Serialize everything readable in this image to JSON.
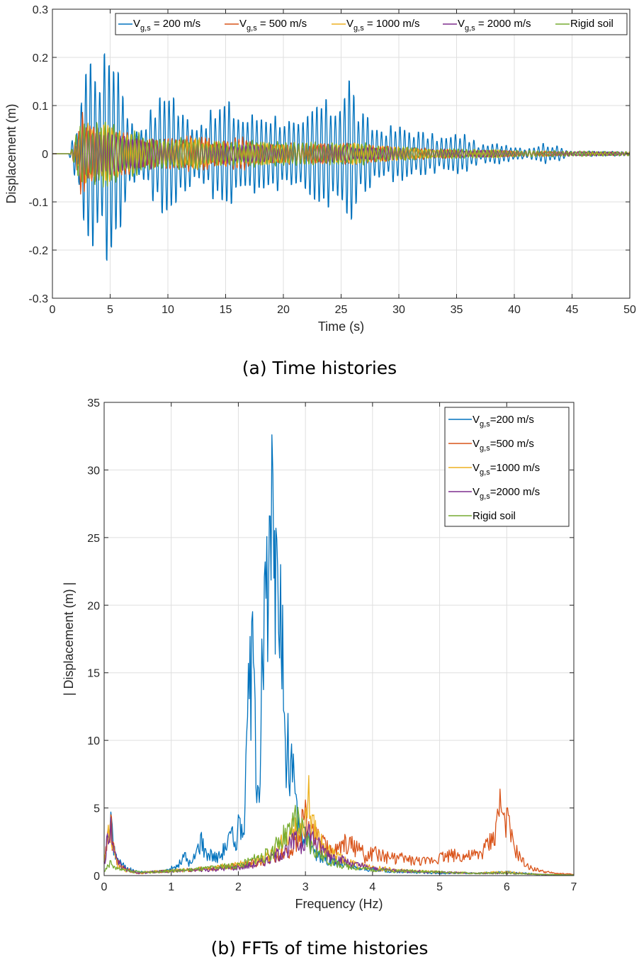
{
  "colors": {
    "s200": "#0072BD",
    "s500": "#D95319",
    "s1000": "#EDB120",
    "s2000": "#7E2F8E",
    "rigid": "#77AC30",
    "grid": "#dfdfdf",
    "axis": "#262626"
  },
  "chart_data": [
    {
      "type": "line",
      "xlabel": "Time (s)",
      "ylabel": "Displacement (m)",
      "caption": "(a) Time histories",
      "xlim": [
        0,
        50
      ],
      "ylim": [
        -0.3,
        0.3
      ],
      "xticks": [
        0,
        5,
        10,
        15,
        20,
        25,
        30,
        35,
        40,
        45,
        50
      ],
      "yticks": [
        -0.3,
        -0.2,
        -0.1,
        0,
        0.1,
        0.2,
        0.3
      ],
      "grid": true,
      "legend_placement": "top, horizontal",
      "series": [
        {
          "name": "V_g,s = 200 m/s",
          "key": "s200",
          "envelope": [
            [
              0,
              0
            ],
            [
              1.4,
              0
            ],
            [
              2.2,
              0.06
            ],
            [
              2.8,
              0.17
            ],
            [
              3.5,
              0.19
            ],
            [
              4.2,
              0.16
            ],
            [
              5.2,
              0.22
            ],
            [
              6,
              0.15
            ],
            [
              6.8,
              0.06
            ],
            [
              7.5,
              0.05
            ],
            [
              8.5,
              0.08
            ],
            [
              9.5,
              0.11
            ],
            [
              10.2,
              0.14
            ],
            [
              11,
              0.08
            ],
            [
              12.5,
              0.06
            ],
            [
              14,
              0.08
            ],
            [
              15,
              0.1
            ],
            [
              16.5,
              0.07
            ],
            [
              18.5,
              0.08
            ],
            [
              20,
              0.07
            ],
            [
              21.5,
              0.05
            ],
            [
              23,
              0.1
            ],
            [
              24.5,
              0.09
            ],
            [
              25.7,
              0.15
            ],
            [
              26.5,
              0.08
            ],
            [
              28,
              0.05
            ],
            [
              30.5,
              0.05
            ],
            [
              32,
              0.04
            ],
            [
              34,
              0.03
            ],
            [
              35.5,
              0.04
            ],
            [
              37,
              0.015
            ],
            [
              39,
              0.02
            ],
            [
              41,
              0.01
            ],
            [
              42.5,
              0.02
            ],
            [
              43.5,
              0.015
            ],
            [
              45,
              0.005
            ],
            [
              50,
              0.004
            ]
          ],
          "freq_hz": 2.5,
          "phase": 0.0
        },
        {
          "name": "V_g,s = 500 m/s",
          "key": "s500",
          "envelope": [
            [
              0,
              0
            ],
            [
              1.5,
              0
            ],
            [
              2,
              0.03
            ],
            [
              2.5,
              0.08
            ],
            [
              3,
              0.06
            ],
            [
              4.5,
              0.05
            ],
            [
              6,
              0.04
            ],
            [
              8,
              0.03
            ],
            [
              10,
              0.03
            ],
            [
              13,
              0.03
            ],
            [
              15,
              0.025
            ],
            [
              16.5,
              0.03
            ],
            [
              18,
              0.02
            ],
            [
              21,
              0.02
            ],
            [
              23,
              0.02
            ],
            [
              26,
              0.02
            ],
            [
              28,
              0.015
            ],
            [
              32,
              0.01
            ],
            [
              35,
              0.008
            ],
            [
              40,
              0.005
            ],
            [
              45,
              0.004
            ],
            [
              50,
              0.003
            ]
          ],
          "freq_hz": 3.1,
          "phase": 1.1
        },
        {
          "name": "V_g,s = 1000 m/s",
          "key": "s1000",
          "envelope": [
            [
              0,
              0
            ],
            [
              1.5,
              0
            ],
            [
              2,
              0.02
            ],
            [
              2.5,
              0.05
            ],
            [
              3.5,
              0.055
            ],
            [
              4.5,
              0.05
            ],
            [
              6,
              0.04
            ],
            [
              8,
              0.03
            ],
            [
              10,
              0.02
            ],
            [
              12,
              0.03
            ],
            [
              15,
              0.02
            ],
            [
              18,
              0.02
            ],
            [
              22,
              0.015
            ],
            [
              25,
              0.02
            ],
            [
              28,
              0.015
            ],
            [
              32,
              0.01
            ],
            [
              38,
              0.007
            ],
            [
              45,
              0.004
            ],
            [
              50,
              0.003
            ]
          ],
          "freq_hz": 2.9,
          "phase": 2.2
        },
        {
          "name": "V_g,s = 2000 m/s",
          "key": "s2000",
          "envelope": [
            [
              0,
              0
            ],
            [
              1.5,
              0
            ],
            [
              2,
              0.02
            ],
            [
              2.5,
              0.04
            ],
            [
              3.5,
              0.045
            ],
            [
              4.5,
              0.04
            ],
            [
              6,
              0.035
            ],
            [
              8,
              0.03
            ],
            [
              10,
              0.02
            ],
            [
              15,
              0.018
            ],
            [
              20,
              0.015
            ],
            [
              25,
              0.015
            ],
            [
              30,
              0.01
            ],
            [
              38,
              0.006
            ],
            [
              45,
              0.004
            ],
            [
              50,
              0.003
            ]
          ],
          "freq_hz": 2.85,
          "phase": 3.0
        },
        {
          "name": "Rigid soil",
          "key": "rigid",
          "envelope": [
            [
              0,
              0
            ],
            [
              1.5,
              0
            ],
            [
              2,
              0.03
            ],
            [
              2.5,
              0.05
            ],
            [
              3.5,
              0.05
            ],
            [
              4.5,
              0.06
            ],
            [
              5.5,
              0.05
            ],
            [
              7,
              0.04
            ],
            [
              9,
              0.03
            ],
            [
              12,
              0.03
            ],
            [
              15,
              0.02
            ],
            [
              18,
              0.025
            ],
            [
              21,
              0.02
            ],
            [
              24,
              0.02
            ],
            [
              26,
              0.025
            ],
            [
              28,
              0.015
            ],
            [
              32,
              0.01
            ],
            [
              38,
              0.007
            ],
            [
              45,
              0.005
            ],
            [
              50,
              0.004
            ]
          ],
          "freq_hz": 2.75,
          "phase": 4.1
        }
      ]
    },
    {
      "type": "line",
      "xlabel": "Frequency (Hz)",
      "ylabel": "| Displacement (m) |",
      "caption": "(b) FFTs of time histories",
      "xlim": [
        0,
        7
      ],
      "ylim": [
        0,
        35
      ],
      "xticks": [
        0,
        1,
        2,
        3,
        4,
        5,
        6,
        7
      ],
      "yticks": [
        0,
        5,
        10,
        15,
        20,
        25,
        30,
        35
      ],
      "grid": true,
      "legend_placement": "top-right",
      "series": [
        {
          "name": "V_g,s=200 m/s",
          "key": "s200",
          "x": [
            0,
            0.05,
            0.1,
            0.13,
            0.18,
            0.25,
            0.35,
            0.5,
            0.7,
            0.9,
            1.1,
            1.2,
            1.3,
            1.45,
            1.5,
            1.6,
            1.7,
            1.8,
            1.9,
            1.95,
            2.0,
            2.05,
            2.1,
            2.15,
            2.2,
            2.25,
            2.3,
            2.35,
            2.4,
            2.45,
            2.5,
            2.53,
            2.56,
            2.6,
            2.63,
            2.66,
            2.7,
            2.74,
            2.78,
            2.82,
            2.86,
            2.9,
            2.95,
            3.0,
            3.1,
            3.2,
            3.4,
            3.6,
            3.8,
            4.0,
            4.5,
            5.0,
            5.5,
            6.0,
            6.5,
            7.0
          ],
          "y": [
            1.0,
            3.0,
            4.7,
            2.8,
            1.6,
            1.0,
            0.6,
            0.3,
            0.3,
            0.4,
            0.8,
            1.7,
            0.9,
            3.2,
            2.0,
            1.8,
            1.5,
            2.4,
            3.5,
            2.5,
            4.5,
            3.8,
            5.3,
            15.7,
            18.8,
            13.0,
            6.5,
            17.5,
            23.2,
            21.0,
            32.6,
            22.0,
            25.7,
            18.0,
            23.0,
            20.0,
            10.0,
            12.0,
            8.5,
            9.0,
            6.0,
            4.5,
            3.0,
            3.5,
            2.2,
            1.8,
            1.2,
            0.8,
            0.6,
            0.5,
            0.3,
            0.2,
            0.2,
            0.3,
            0.1,
            0.05
          ]
        },
        {
          "name": "V_g,s=500 m/s",
          "key": "s500",
          "x": [
            0,
            0.05,
            0.1,
            0.13,
            0.18,
            0.25,
            0.35,
            0.5,
            0.7,
            1.0,
            1.5,
            2.0,
            2.3,
            2.5,
            2.7,
            2.9,
            3.0,
            3.05,
            3.1,
            3.2,
            3.3,
            3.4,
            3.5,
            3.6,
            3.8,
            3.9,
            4.0,
            4.2,
            4.4,
            4.6,
            4.8,
            5.0,
            5.2,
            5.4,
            5.6,
            5.7,
            5.8,
            5.85,
            5.9,
            5.95,
            6.0,
            6.05,
            6.1,
            6.2,
            6.3,
            6.5,
            6.7,
            7.0
          ],
          "y": [
            1.0,
            3.2,
            4.5,
            2.5,
            1.4,
            0.8,
            0.5,
            0.2,
            0.3,
            0.4,
            0.6,
            0.8,
            1.2,
            1.5,
            2.0,
            3.0,
            5.6,
            4.0,
            3.5,
            3.2,
            2.5,
            2.0,
            2.2,
            2.8,
            2.4,
            1.5,
            2.0,
            1.6,
            1.5,
            1.3,
            1.2,
            1.6,
            1.8,
            1.6,
            1.8,
            2.5,
            3.2,
            4.2,
            6.4,
            4.5,
            5.0,
            3.5,
            2.5,
            1.5,
            0.8,
            0.4,
            0.2,
            0.1
          ]
        },
        {
          "name": "V_g,s=1000 m/s",
          "key": "s1000",
          "x": [
            0,
            0.05,
            0.1,
            0.13,
            0.18,
            0.25,
            0.35,
            0.5,
            0.7,
            1.0,
            1.5,
            2.0,
            2.3,
            2.5,
            2.7,
            2.8,
            2.9,
            2.95,
            3.0,
            3.05,
            3.1,
            3.2,
            3.3,
            3.5,
            3.7,
            4.0,
            4.5,
            5.0,
            5.5,
            6.0,
            6.5,
            7.0
          ],
          "y": [
            1.0,
            3.0,
            4.2,
            2.3,
            1.2,
            0.7,
            0.4,
            0.2,
            0.3,
            0.4,
            0.6,
            0.9,
            1.3,
            1.8,
            3.0,
            4.2,
            3.5,
            4.0,
            5.0,
            7.4,
            4.5,
            3.2,
            2.2,
            1.5,
            1.0,
            0.7,
            0.4,
            0.3,
            0.2,
            0.3,
            0.1,
            0.05
          ]
        },
        {
          "name": "V_g,s=2000 m/s",
          "key": "s2000",
          "x": [
            0,
            0.05,
            0.1,
            0.13,
            0.18,
            0.25,
            0.35,
            0.5,
            0.7,
            1.0,
            1.5,
            2.0,
            2.3,
            2.5,
            2.7,
            2.85,
            2.95,
            3.05,
            3.15,
            3.3,
            3.5,
            3.7,
            4.0,
            4.5,
            5.0,
            5.5,
            6.0,
            6.5,
            7.0
          ],
          "y": [
            1.0,
            3.1,
            4.3,
            2.4,
            1.3,
            0.8,
            0.5,
            0.2,
            0.3,
            0.4,
            0.5,
            0.7,
            1.0,
            1.5,
            2.2,
            3.0,
            2.5,
            3.8,
            2.8,
            2.0,
            1.4,
            1.0,
            0.6,
            0.4,
            0.3,
            0.2,
            0.2,
            0.1,
            0.05
          ]
        },
        {
          "name": "Rigid soil",
          "key": "rigid",
          "x": [
            0,
            0.05,
            0.1,
            0.15,
            0.25,
            0.35,
            0.5,
            0.7,
            1.0,
            1.5,
            2.0,
            2.3,
            2.5,
            2.6,
            2.7,
            2.8,
            2.85,
            2.9,
            3.0,
            3.1,
            3.2,
            3.3,
            3.5,
            3.7,
            4.0,
            4.5,
            5.0,
            5.5,
            6.0,
            6.5,
            7.0
          ],
          "y": [
            0.3,
            0.8,
            1.1,
            0.7,
            0.5,
            0.4,
            0.3,
            0.3,
            0.4,
            0.6,
            0.9,
            1.5,
            2.0,
            2.8,
            3.5,
            3.8,
            5.2,
            4.5,
            3.2,
            2.4,
            1.8,
            1.4,
            1.0,
            0.7,
            0.5,
            0.4,
            0.3,
            0.2,
            0.2,
            0.1,
            0.05
          ]
        }
      ]
    }
  ]
}
